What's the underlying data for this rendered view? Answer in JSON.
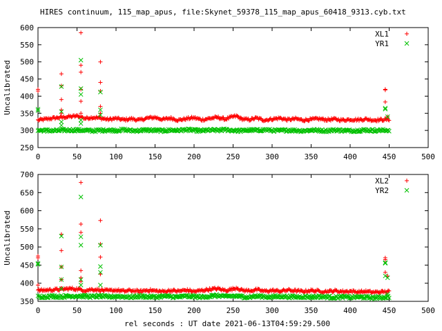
{
  "title": "HIRES continuum, 115_map_apus, file:Skynet_59378_115_map_apus_60418_9313.cyb.txt",
  "xlabel": "rel seconds : UT date 2021-06-13T04:59:29.500",
  "colors": {
    "series_a": "#ff0000",
    "series_b": "#00c000",
    "axis": "#000000"
  },
  "chart_data": [
    {
      "type": "scatter",
      "ylabel": "Uncalibrated",
      "xlim": [
        0,
        500
      ],
      "ylim": [
        250,
        600
      ],
      "x_ticks": [
        0,
        50,
        100,
        150,
        200,
        250,
        300,
        350,
        400,
        450,
        500
      ],
      "y_ticks": [
        250,
        300,
        350,
        400,
        450,
        500,
        550,
        600
      ],
      "legend_position": "top-right",
      "series": [
        {
          "name": "XL1",
          "marker": "+",
          "baseline": [
            [
              0,
              330
            ],
            [
              10,
              333
            ],
            [
              20,
              336
            ],
            [
              30,
              338
            ],
            [
              40,
              340
            ],
            [
              50,
              342
            ],
            [
              55,
              340
            ],
            [
              60,
              335
            ],
            [
              70,
              338
            ],
            [
              80,
              336
            ],
            [
              90,
              332
            ],
            [
              100,
              335
            ],
            [
              110,
              331
            ],
            [
              120,
              334
            ],
            [
              130,
              330
            ],
            [
              140,
              336
            ],
            [
              150,
              338
            ],
            [
              160,
              332
            ],
            [
              170,
              336
            ],
            [
              180,
              330
            ],
            [
              190,
              334
            ],
            [
              200,
              337
            ],
            [
              210,
              331
            ],
            [
              220,
              335
            ],
            [
              230,
              338
            ],
            [
              240,
              333
            ],
            [
              250,
              340
            ],
            [
              255,
              342
            ],
            [
              260,
              334
            ],
            [
              270,
              331
            ],
            [
              280,
              336
            ],
            [
              290,
              330
            ],
            [
              300,
              333
            ],
            [
              310,
              336
            ],
            [
              320,
              331
            ],
            [
              330,
              334
            ],
            [
              340,
              330
            ],
            [
              350,
              332
            ],
            [
              360,
              334
            ],
            [
              370,
              331
            ],
            [
              380,
              333
            ],
            [
              390,
              330
            ],
            [
              400,
              332
            ],
            [
              410,
              331
            ],
            [
              420,
              333
            ],
            [
              430,
              330
            ],
            [
              440,
              331
            ],
            [
              450,
              332
            ]
          ],
          "outliers": [
            [
              0,
              420
            ],
            [
              0,
              415
            ],
            [
              30,
              465
            ],
            [
              30,
              430
            ],
            [
              30,
              390
            ],
            [
              30,
              360
            ],
            [
              30,
              350
            ],
            [
              55,
              585
            ],
            [
              55,
              490
            ],
            [
              55,
              470
            ],
            [
              55,
              420
            ],
            [
              55,
              385
            ],
            [
              55,
              350
            ],
            [
              80,
              500
            ],
            [
              80,
              440
            ],
            [
              80,
              415
            ],
            [
              80,
              370
            ],
            [
              80,
              350
            ],
            [
              445,
              420
            ],
            [
              445,
              418
            ],
            [
              445,
              383
            ],
            [
              448,
              340
            ]
          ]
        },
        {
          "name": "YR1",
          "marker": "x",
          "baseline": [
            [
              0,
              300
            ],
            [
              10,
              300
            ],
            [
              20,
              299
            ],
            [
              30,
              300
            ],
            [
              40,
              301
            ],
            [
              50,
              301
            ],
            [
              60,
              300
            ],
            [
              70,
              299
            ],
            [
              80,
              300
            ],
            [
              90,
              301
            ],
            [
              100,
              300
            ],
            [
              110,
              302
            ],
            [
              120,
              299
            ],
            [
              130,
              300
            ],
            [
              140,
              301
            ],
            [
              150,
              300
            ],
            [
              160,
              299
            ],
            [
              170,
              301
            ],
            [
              180,
              300
            ],
            [
              190,
              302
            ],
            [
              200,
              300
            ],
            [
              210,
              299
            ],
            [
              220,
              301
            ],
            [
              230,
              300
            ],
            [
              240,
              302
            ],
            [
              250,
              300
            ],
            [
              260,
              299
            ],
            [
              270,
              301
            ],
            [
              280,
              300
            ],
            [
              290,
              302
            ],
            [
              300,
              300
            ],
            [
              310,
              299
            ],
            [
              320,
              301
            ],
            [
              330,
              300
            ],
            [
              340,
              299
            ],
            [
              350,
              301
            ],
            [
              360,
              300
            ],
            [
              370,
              299
            ],
            [
              380,
              301
            ],
            [
              390,
              300
            ],
            [
              400,
              299
            ],
            [
              410,
              300
            ],
            [
              420,
              301
            ],
            [
              430,
              300
            ],
            [
              440,
              300
            ],
            [
              450,
              301
            ]
          ],
          "outliers": [
            [
              0,
              362
            ],
            [
              0,
              358
            ],
            [
              30,
              428
            ],
            [
              30,
              355
            ],
            [
              30,
              325
            ],
            [
              30,
              315
            ],
            [
              55,
              505
            ],
            [
              55,
              422
            ],
            [
              55,
              405
            ],
            [
              55,
              330
            ],
            [
              55,
              320
            ],
            [
              80,
              412
            ],
            [
              80,
              360
            ],
            [
              80,
              345
            ],
            [
              445,
              365
            ],
            [
              445,
              362
            ],
            [
              448,
              340
            ]
          ]
        }
      ]
    },
    {
      "type": "scatter",
      "ylabel": "Uncalibrated",
      "xlim": [
        0,
        500
      ],
      "ylim": [
        350,
        700
      ],
      "x_ticks": [
        0,
        50,
        100,
        150,
        200,
        250,
        300,
        350,
        400,
        450,
        500
      ],
      "y_ticks": [
        350,
        400,
        450,
        500,
        550,
        600,
        650,
        700
      ],
      "legend_position": "top-right",
      "series": [
        {
          "name": "XL2",
          "marker": "+",
          "baseline": [
            [
              0,
              380
            ],
            [
              10,
              381
            ],
            [
              20,
              382
            ],
            [
              30,
              383
            ],
            [
              40,
              385
            ],
            [
              50,
              384
            ],
            [
              55,
              382
            ],
            [
              60,
              380
            ],
            [
              70,
              383
            ],
            [
              80,
              381
            ],
            [
              90,
              379
            ],
            [
              100,
              381
            ],
            [
              110,
              378
            ],
            [
              120,
              380
            ],
            [
              130,
              377
            ],
            [
              140,
              381
            ],
            [
              150,
              379
            ],
            [
              160,
              377
            ],
            [
              170,
              380
            ],
            [
              180,
              378
            ],
            [
              190,
              381
            ],
            [
              200,
              377
            ],
            [
              210,
              380
            ],
            [
              220,
              383
            ],
            [
              230,
              385
            ],
            [
              240,
              380
            ],
            [
              250,
              384
            ],
            [
              255,
              388
            ],
            [
              260,
              381
            ],
            [
              270,
              379
            ],
            [
              280,
              382
            ],
            [
              290,
              378
            ],
            [
              300,
              380
            ],
            [
              310,
              378
            ],
            [
              320,
              381
            ],
            [
              330,
              379
            ],
            [
              340,
              377
            ],
            [
              350,
              380
            ],
            [
              360,
              378
            ],
            [
              370,
              377
            ],
            [
              380,
              379
            ],
            [
              390,
              377
            ],
            [
              400,
              378
            ],
            [
              410,
              376
            ],
            [
              420,
              377
            ],
            [
              430,
              375
            ],
            [
              440,
              376
            ],
            [
              450,
              377
            ]
          ],
          "outliers": [
            [
              0,
              475
            ],
            [
              0,
              470
            ],
            [
              0,
              395
            ],
            [
              30,
              535
            ],
            [
              30,
              490
            ],
            [
              30,
              445
            ],
            [
              30,
              410
            ],
            [
              55,
              678
            ],
            [
              55,
              563
            ],
            [
              55,
              540
            ],
            [
              55,
              435
            ],
            [
              55,
              415
            ],
            [
              55,
              405
            ],
            [
              80,
              573
            ],
            [
              80,
              508
            ],
            [
              80,
              472
            ],
            [
              80,
              425
            ],
            [
              445,
              470
            ],
            [
              445,
              465
            ],
            [
              445,
              430
            ],
            [
              448,
              420
            ]
          ]
        },
        {
          "name": "YR2",
          "marker": "x",
          "baseline": [
            [
              0,
              363
            ],
            [
              10,
              363
            ],
            [
              20,
              364
            ],
            [
              30,
              363
            ],
            [
              40,
              364
            ],
            [
              50,
              365
            ],
            [
              60,
              364
            ],
            [
              70,
              363
            ],
            [
              80,
              364
            ],
            [
              90,
              362
            ],
            [
              100,
              364
            ],
            [
              110,
              363
            ],
            [
              120,
              362
            ],
            [
              130,
              364
            ],
            [
              140,
              363
            ],
            [
              150,
              362
            ],
            [
              160,
              364
            ],
            [
              170,
              363
            ],
            [
              180,
              362
            ],
            [
              190,
              364
            ],
            [
              200,
              363
            ],
            [
              210,
              362
            ],
            [
              220,
              364
            ],
            [
              230,
              366
            ],
            [
              240,
              363
            ],
            [
              250,
              365
            ],
            [
              260,
              363
            ],
            [
              270,
              362
            ],
            [
              280,
              364
            ],
            [
              290,
              363
            ],
            [
              300,
              362
            ],
            [
              310,
              364
            ],
            [
              320,
              363
            ],
            [
              330,
              362
            ],
            [
              340,
              363
            ],
            [
              350,
              362
            ],
            [
              360,
              363
            ],
            [
              370,
              362
            ],
            [
              380,
              361
            ],
            [
              390,
              362
            ],
            [
              400,
              361
            ],
            [
              410,
              362
            ],
            [
              420,
              361
            ],
            [
              430,
              360
            ],
            [
              440,
              361
            ],
            [
              450,
              362
            ]
          ],
          "outliers": [
            [
              0,
              455
            ],
            [
              0,
              452
            ],
            [
              30,
              530
            ],
            [
              30,
              445
            ],
            [
              30,
              410
            ],
            [
              30,
              385
            ],
            [
              55,
              638
            ],
            [
              55,
              528
            ],
            [
              55,
              505
            ],
            [
              55,
              410
            ],
            [
              55,
              395
            ],
            [
              80,
              505
            ],
            [
              80,
              446
            ],
            [
              80,
              430
            ],
            [
              80,
              395
            ],
            [
              445,
              457
            ],
            [
              445,
              455
            ],
            [
              445,
              420
            ],
            [
              448,
              415
            ],
            [
              448,
              370
            ]
          ]
        }
      ]
    }
  ]
}
